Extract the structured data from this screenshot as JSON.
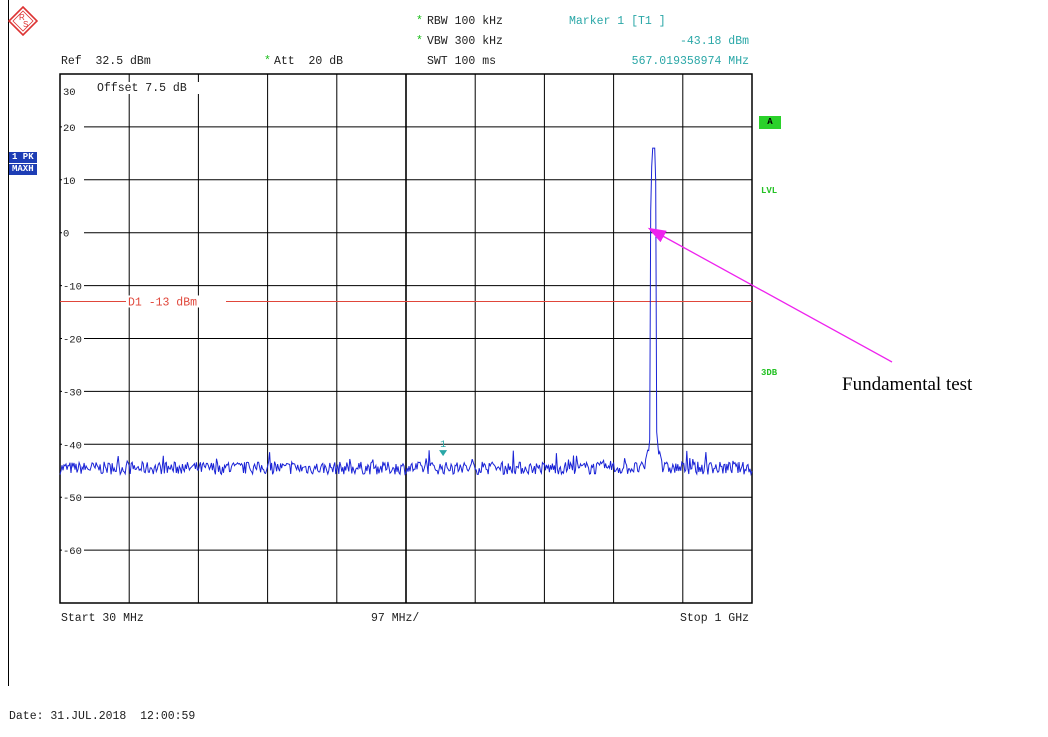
{
  "header": {
    "ref": "Ref  32.5 dBm",
    "att_star": "*",
    "att": "Att  20 dB",
    "rbw_star": "*",
    "rbw": "RBW 100 kHz",
    "vbw_star": "*",
    "vbw": "VBW 300 kHz",
    "swt": "SWT 100 ms",
    "marker_title": "Marker 1 [T1 ]",
    "marker_level": "-43.18 dBm",
    "marker_freq": "567.019358974 MHz"
  },
  "side": {
    "trace_mode_1": "1 PK",
    "trace_mode_2": "MAXH",
    "trace_label": "A",
    "lvl": "LVL",
    "threedb": "3DB"
  },
  "footer": {
    "start": "Start 30 MHz",
    "span": "97 MHz/",
    "stop": "Stop 1 GHz",
    "date": "Date: 31.JUL.2018  12:00:59"
  },
  "annotation": "Fundamental test",
  "colors": {
    "trace": "#1a23d6",
    "limit_line": "#e0463a",
    "marker": "#2aa7a7",
    "arrow": "#ee22ee",
    "grid": "#000000"
  },
  "chart_data": {
    "type": "line",
    "offset_label": "Offset  7.5 dB",
    "xlim_mhz": [
      30,
      1000
    ],
    "ylim_dbm": [
      -70,
      30
    ],
    "y_ticks": [
      30,
      20,
      10,
      0,
      -10,
      -20,
      -30,
      -40,
      -50,
      -60
    ],
    "y_tick_labels": [
      "30",
      "20",
      "10",
      "0",
      "-10",
      "-20",
      "-30",
      "-40",
      "-50",
      "-60"
    ],
    "grid": true,
    "display_line": {
      "label": "D1 -13 dBm",
      "value": -13
    },
    "marker": {
      "label": "1",
      "x_mhz": 567.0,
      "y_dbm": -43.18
    },
    "peak": {
      "x_mhz": 862,
      "y_dbm": 16
    },
    "noise_floor_dbm": -44.5
  }
}
